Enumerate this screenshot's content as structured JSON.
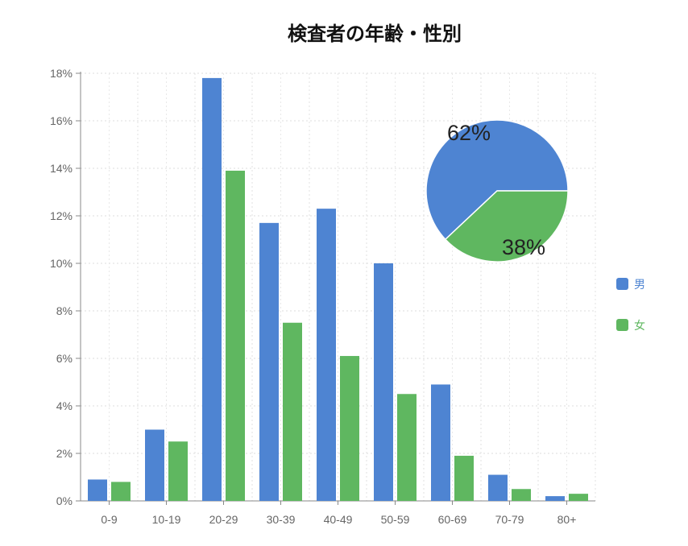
{
  "chart_data": [
    {
      "type": "bar",
      "title": "検査者の年齢・性別",
      "categories": [
        "0-9",
        "10-19",
        "20-29",
        "30-39",
        "40-49",
        "50-59",
        "60-69",
        "70-79",
        "80+"
      ],
      "series": [
        {
          "name": "男",
          "color": "#4e84d2",
          "values": [
            0.9,
            3.0,
            17.8,
            11.7,
            12.3,
            10.0,
            4.9,
            1.1,
            0.2
          ]
        },
        {
          "name": "女",
          "color": "#5fb760",
          "values": [
            0.8,
            2.5,
            13.9,
            7.5,
            6.1,
            4.5,
            1.9,
            0.5,
            0.3
          ]
        }
      ],
      "ylim": [
        0,
        18
      ],
      "yticks": [
        "0%",
        "2%",
        "4%",
        "6%",
        "8%",
        "10%",
        "12%",
        "14%",
        "16%",
        "18%"
      ],
      "grid": true,
      "legend": "right"
    },
    {
      "type": "pie",
      "slices": [
        {
          "name": "男",
          "value": 62,
          "label": "62%",
          "color": "#4e84d2"
        },
        {
          "name": "女",
          "value": 38,
          "label": "38%",
          "color": "#5fb760"
        }
      ]
    }
  ]
}
